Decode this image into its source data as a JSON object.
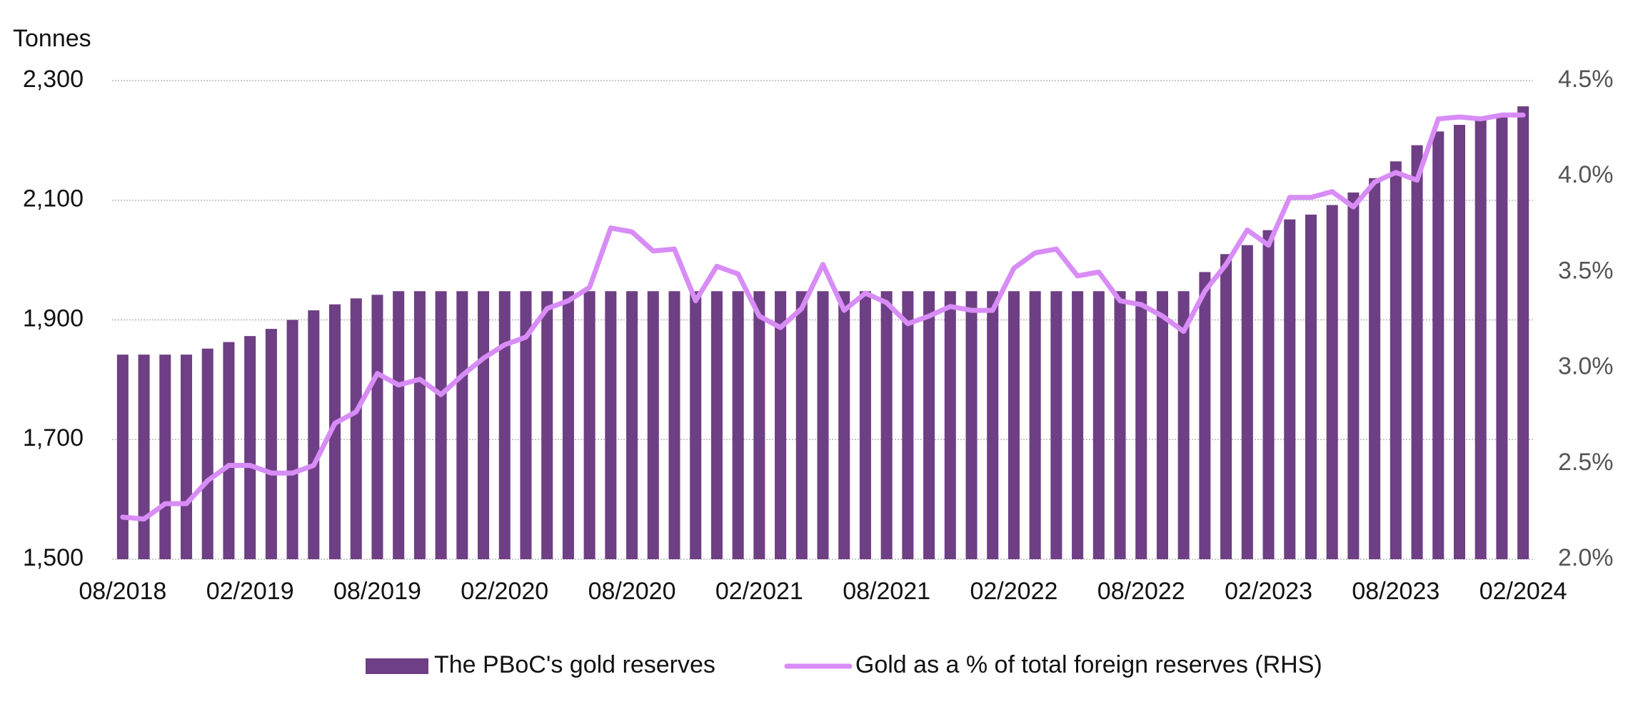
{
  "chart_data": {
    "type": "bar-line",
    "y_axis_label": "Tonnes",
    "categories": [
      "08/2018",
      null,
      null,
      null,
      null,
      null,
      "02/2019",
      null,
      null,
      null,
      null,
      null,
      "08/2019",
      null,
      null,
      null,
      null,
      null,
      "02/2020",
      null,
      null,
      null,
      null,
      null,
      "08/2020",
      null,
      null,
      null,
      null,
      null,
      "02/2021",
      null,
      null,
      null,
      null,
      null,
      "08/2021",
      null,
      null,
      null,
      null,
      null,
      "02/2022",
      null,
      null,
      null,
      null,
      null,
      "08/2022",
      null,
      null,
      null,
      null,
      null,
      "02/2023",
      null,
      null,
      null,
      null,
      null,
      "08/2023",
      null,
      null,
      null,
      null,
      null,
      "02/2024"
    ],
    "series": [
      {
        "name": "The PBoC's gold reserves",
        "type": "bar",
        "color": "#6e3f84",
        "values": [
          1842,
          1842,
          1842,
          1842,
          1852,
          1863,
          1873,
          1885,
          1900,
          1916,
          1926,
          1936,
          1942,
          1948,
          1948,
          1948,
          1948,
          1948,
          1948,
          1948,
          1948,
          1948,
          1948,
          1948,
          1948,
          1948,
          1948,
          1948,
          1948,
          1948,
          1948,
          1948,
          1948,
          1948,
          1948,
          1948,
          1948,
          1948,
          1948,
          1948,
          1948,
          1948,
          1948,
          1948,
          1948,
          1948,
          1948,
          1948,
          1948,
          1948,
          1948,
          1980,
          2010,
          2025,
          2050,
          2068,
          2076,
          2092,
          2113,
          2137,
          2165,
          2192,
          2215,
          2226,
          2235,
          2245,
          2257
        ]
      },
      {
        "name": "Gold as a % of total foreign reserves (RHS)",
        "type": "line",
        "axis": "y2",
        "color": "#d88cf6",
        "values": [
          2.22,
          2.21,
          2.29,
          2.29,
          2.41,
          2.49,
          2.49,
          2.45,
          2.45,
          2.49,
          2.71,
          2.77,
          2.97,
          2.91,
          2.94,
          2.86,
          2.96,
          3.05,
          3.12,
          3.16,
          3.31,
          3.35,
          3.42,
          3.73,
          3.71,
          3.61,
          3.62,
          3.35,
          3.53,
          3.49,
          3.27,
          3.21,
          3.31,
          3.54,
          3.3,
          3.39,
          3.34,
          3.23,
          3.27,
          3.32,
          3.3,
          3.3,
          3.52,
          3.6,
          3.62,
          3.48,
          3.5,
          3.35,
          3.33,
          3.27,
          3.19,
          3.4,
          3.54,
          3.72,
          3.64,
          3.89,
          3.89,
          3.92,
          3.84,
          3.97,
          4.02,
          3.98,
          4.3,
          4.31,
          4.3,
          4.32,
          4.32
        ]
      }
    ],
    "ylim": [
      1500,
      2300
    ],
    "yticks": [
      {
        "value": 1500,
        "label": "1,500"
      },
      {
        "value": 1700,
        "label": "1,700"
      },
      {
        "value": 1900,
        "label": "1,900"
      },
      {
        "value": 2100,
        "label": "2,100"
      },
      {
        "value": 2300,
        "label": "2,300"
      }
    ],
    "y2lim": [
      2.0,
      4.5
    ],
    "y2ticks": [
      {
        "value": 2.0,
        "label": "2.0%"
      },
      {
        "value": 2.5,
        "label": "2.5%"
      },
      {
        "value": 3.0,
        "label": "3.0%"
      },
      {
        "value": 3.5,
        "label": "3.5%"
      },
      {
        "value": 4.0,
        "label": "4.0%"
      },
      {
        "value": 4.5,
        "label": "4.5%"
      }
    ],
    "grid": true,
    "legend": "bottom"
  }
}
